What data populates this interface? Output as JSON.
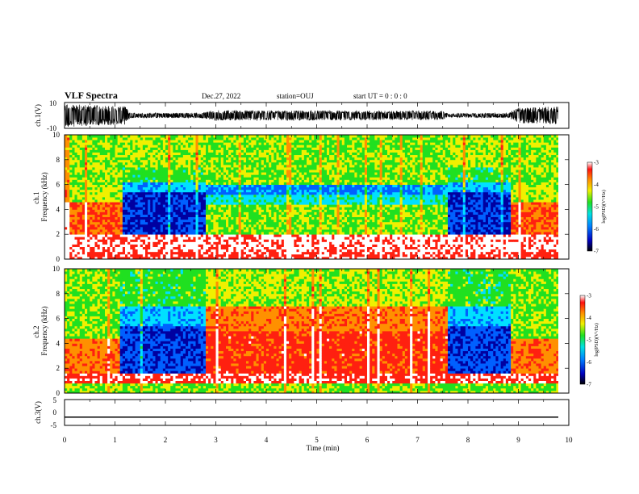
{
  "header": {
    "title": "VLF Spectra",
    "date": "Dec.27, 2022",
    "station": "station=OUJ",
    "start": "start  UT =  0 : 0  : 0"
  },
  "chart_data": [
    {
      "panel": "ch1-waveform",
      "type": "line",
      "ylabel": "ch.1(V)",
      "ylim": [
        -10,
        10
      ],
      "yticks": [
        "10",
        "-10"
      ],
      "xlim": [
        0,
        10
      ],
      "description_of_envelope": [
        {
          "t": 0.0,
          "amp": 9
        },
        {
          "t": 1.2,
          "amp": 7
        },
        {
          "t": 1.3,
          "amp": 2
        },
        {
          "t": 2.7,
          "amp": 2
        },
        {
          "t": 3.0,
          "amp": 4
        },
        {
          "t": 7.5,
          "amp": 3.5
        },
        {
          "t": 7.6,
          "amp": 1.5
        },
        {
          "t": 8.8,
          "amp": 2
        },
        {
          "t": 9.0,
          "amp": 6
        },
        {
          "t": 9.8,
          "amp": 7
        }
      ]
    },
    {
      "panel": "ch1-spectrogram",
      "type": "heatmap",
      "ylabel": "ch.1\nFrequency  (kHz)",
      "ylim": [
        0,
        10
      ],
      "yticks": [
        "0",
        "2",
        "4",
        "6",
        "8",
        "10"
      ],
      "xlim": [
        0,
        10
      ],
      "x_segments_min": [
        0,
        1.15,
        2.75,
        7.55,
        8.8,
        9.8
      ],
      "colorbar": {
        "min": -7,
        "max": -3,
        "ticks": [
          "-3",
          "-4",
          "-5",
          "-6",
          "-7"
        ],
        "label": "log(PSD)(V²/Hz)"
      }
    },
    {
      "panel": "ch2-spectrogram",
      "type": "heatmap",
      "ylabel": "ch.2\nFrequency  (kHz)",
      "ylim": [
        0,
        10
      ],
      "yticks": [
        "0",
        "2",
        "4",
        "6",
        "8",
        "10"
      ],
      "xlim": [
        0,
        10
      ],
      "x_segments_min": [
        0,
        1.1,
        2.75,
        7.55,
        8.8,
        9.8
      ],
      "colorbar": {
        "min": -7,
        "max": -3,
        "ticks": [
          "-3",
          "-4",
          "-5",
          "-6",
          "-7"
        ],
        "label": "log(PSD)(V²/Hz)"
      }
    },
    {
      "panel": "ch3-waveform",
      "type": "line",
      "ylabel": "ch.3(V)",
      "ylim": [
        -5,
        5
      ],
      "yticks": [
        "5",
        "0",
        "-5"
      ],
      "xlim": [
        0,
        10
      ],
      "value": -1.8
    }
  ],
  "xaxis": {
    "label": "Time  (min)",
    "ticks": [
      "0",
      "1",
      "2",
      "3",
      "4",
      "5",
      "6",
      "7",
      "8",
      "9",
      "10"
    ]
  },
  "colors": {
    "white": "#ffffff",
    "red": "#ff2010",
    "orange": "#ff9000",
    "yellow": "#f0f000",
    "green": "#20e020",
    "cyan": "#00e0ff",
    "blue": "#0060ff",
    "navy": "#0000a0",
    "dark": "#000040"
  }
}
